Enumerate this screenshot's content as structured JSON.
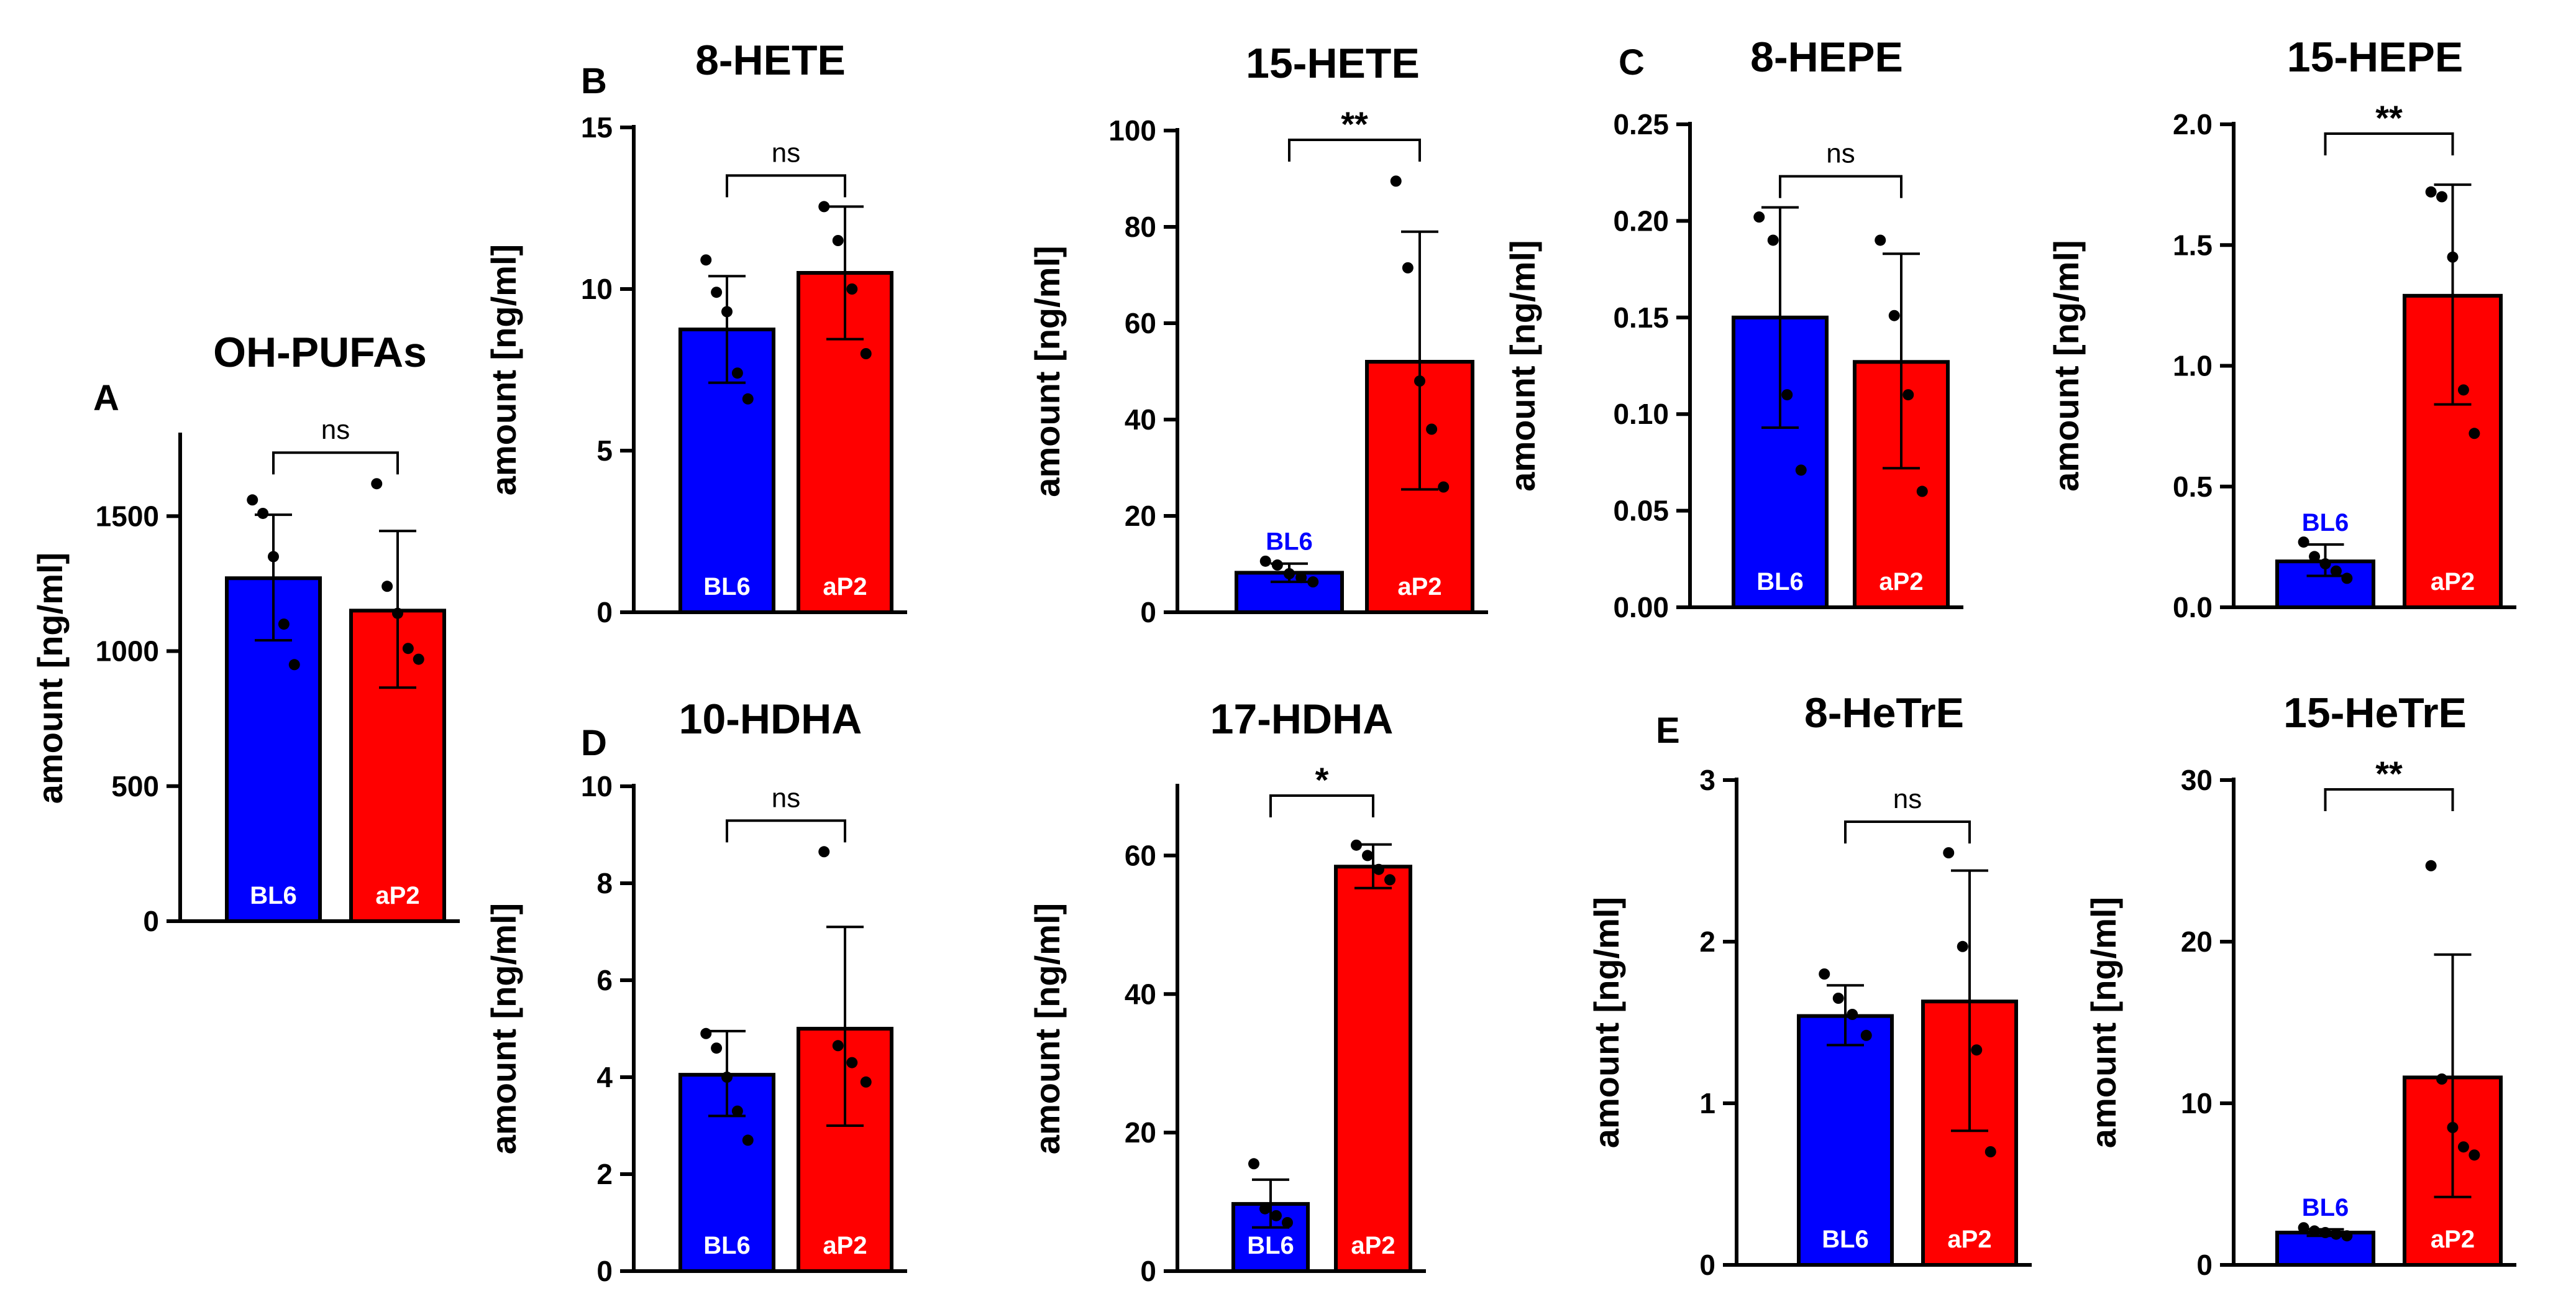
{
  "colors": {
    "bl6": "#0000ff",
    "ap2": "#ff0000",
    "axis": "#000000",
    "bl6_outside_label": "#0000ff",
    "inside_label": "#ffffff"
  },
  "chart_data": [
    {
      "id": "A",
      "panel_letter": "A",
      "type": "bar",
      "title": "OH-PUFAs",
      "ylabel": "amount [ng/ml]",
      "ylim": [
        0,
        1800
      ],
      "ytick_labels": [
        "0",
        "500",
        "1000",
        "1500"
      ],
      "yticks": [
        0,
        500,
        1000,
        1500
      ],
      "significance": "ns",
      "groups": [
        {
          "name": "BL6",
          "value": 1270,
          "err_low": 1040,
          "err_high": 1505,
          "points": [
            1560,
            1510,
            1350,
            1100,
            950
          ],
          "label_position": "inside"
        },
        {
          "name": "aP2",
          "value": 1150,
          "err_low": 865,
          "err_high": 1445,
          "points": [
            1620,
            1240,
            1140,
            1010,
            970
          ],
          "label_position": "inside"
        }
      ]
    },
    {
      "id": "B1",
      "panel_letter": "B",
      "type": "bar",
      "title": "8-HETE",
      "ylabel": "amount [ng/ml]",
      "ylim": [
        0,
        15
      ],
      "ytick_labels": [
        "0",
        "5",
        "10",
        "15"
      ],
      "yticks": [
        0,
        5,
        10,
        15
      ],
      "significance": "ns",
      "groups": [
        {
          "name": "BL6",
          "value": 8.75,
          "err_low": 7.1,
          "err_high": 10.4,
          "points": [
            10.9,
            9.9,
            9.3,
            7.4,
            6.6
          ],
          "label_position": "inside"
        },
        {
          "name": "aP2",
          "value": 10.5,
          "err_low": 8.45,
          "err_high": 12.55,
          "points": [
            12.55,
            11.5,
            10.0,
            8.0
          ],
          "label_position": "inside"
        }
      ]
    },
    {
      "id": "B2",
      "panel_letter": "",
      "type": "bar",
      "title": "15-HETE",
      "ylabel": "amount [ng/ml]",
      "ylim": [
        0,
        100
      ],
      "ytick_labels": [
        "0",
        "20",
        "40",
        "60",
        "80",
        "100"
      ],
      "yticks": [
        0,
        20,
        40,
        60,
        80,
        100
      ],
      "significance": "**",
      "groups": [
        {
          "name": "BL6",
          "value": 8.2,
          "err_low": 6.3,
          "err_high": 10.1,
          "points": [
            10.6,
            9.8,
            8.0,
            7.2,
            6.3
          ],
          "label_position": "outside"
        },
        {
          "name": "aP2",
          "value": 52,
          "err_low": 25.5,
          "err_high": 79,
          "points": [
            89.5,
            71.5,
            48,
            38,
            26
          ],
          "label_position": "inside"
        }
      ]
    },
    {
      "id": "C1",
      "panel_letter": "C",
      "type": "bar",
      "title": "8-HEPE",
      "ylabel": "amount [ng/ml]",
      "ylim": [
        0,
        0.25
      ],
      "ytick_labels": [
        "0.00",
        "0.05",
        "0.10",
        "0.15",
        "0.20",
        "0.25"
      ],
      "yticks": [
        0,
        0.05,
        0.1,
        0.15,
        0.2,
        0.25
      ],
      "significance": "ns",
      "groups": [
        {
          "name": "BL6",
          "value": 0.15,
          "err_low": 0.093,
          "err_high": 0.207,
          "points": [
            0.202,
            0.19,
            0.11,
            0.071
          ],
          "label_position": "inside"
        },
        {
          "name": "aP2",
          "value": 0.127,
          "err_low": 0.072,
          "err_high": 0.183,
          "points": [
            0.19,
            0.151,
            0.11,
            0.06
          ],
          "label_position": "inside"
        }
      ]
    },
    {
      "id": "C2",
      "panel_letter": "",
      "type": "bar",
      "title": "15-HEPE",
      "ylabel": "amount [ng/ml]",
      "ylim": [
        0,
        2.0
      ],
      "ytick_labels": [
        "0.0",
        "0.5",
        "1.0",
        "1.5",
        "2.0"
      ],
      "yticks": [
        0,
        0.5,
        1.0,
        1.5,
        2.0
      ],
      "significance": "**",
      "groups": [
        {
          "name": "BL6",
          "value": 0.19,
          "err_low": 0.13,
          "err_high": 0.26,
          "points": [
            0.27,
            0.21,
            0.18,
            0.15,
            0.12
          ],
          "label_position": "outside"
        },
        {
          "name": "aP2",
          "value": 1.29,
          "err_low": 0.84,
          "err_high": 1.75,
          "points": [
            1.72,
            1.7,
            1.45,
            0.9,
            0.72
          ],
          "label_position": "inside"
        }
      ]
    },
    {
      "id": "D1",
      "panel_letter": "D",
      "type": "bar",
      "title": "10-HDHA",
      "ylabel": "amount [ng/ml]",
      "ylim": [
        0,
        10
      ],
      "ytick_labels": [
        "0",
        "2",
        "4",
        "6",
        "8",
        "10"
      ],
      "yticks": [
        0,
        2,
        4,
        6,
        8,
        10
      ],
      "significance": "ns",
      "groups": [
        {
          "name": "BL6",
          "value": 4.05,
          "err_low": 3.2,
          "err_high": 4.95,
          "points": [
            4.9,
            4.6,
            4.0,
            3.3,
            2.7
          ],
          "label_position": "inside"
        },
        {
          "name": "aP2",
          "value": 5.0,
          "err_low": 3.0,
          "err_high": 7.1,
          "points": [
            8.65,
            4.65,
            4.3,
            3.9
          ],
          "label_position": "inside"
        }
      ]
    },
    {
      "id": "D2",
      "panel_letter": "",
      "type": "bar",
      "title": "17-HDHA",
      "ylabel": "amount [ng/ml]",
      "ylim": [
        0,
        70
      ],
      "ytick_labels": [
        "0",
        "20",
        "40",
        "60"
      ],
      "yticks": [
        0,
        20,
        40,
        60
      ],
      "significance": "*",
      "groups": [
        {
          "name": "BL6",
          "value": 9.7,
          "err_low": 6.3,
          "err_high": 13.2,
          "points": [
            15.5,
            9.0,
            8.0,
            7.0
          ],
          "label_position": "inside"
        },
        {
          "name": "aP2",
          "value": 58.4,
          "err_low": 55.3,
          "err_high": 61.6,
          "points": [
            61.5,
            60.0,
            58.0,
            56.5
          ],
          "label_position": "inside"
        }
      ]
    },
    {
      "id": "E1",
      "panel_letter": "E",
      "type": "bar",
      "title": "8-HeTrE",
      "ylabel": "amount [ng/ml]",
      "ylim": [
        0,
        3
      ],
      "ytick_labels": [
        "0",
        "1",
        "2",
        "3"
      ],
      "yticks": [
        0,
        1,
        2,
        3
      ],
      "significance": "ns",
      "groups": [
        {
          "name": "BL6",
          "value": 1.54,
          "err_low": 1.36,
          "err_high": 1.73,
          "points": [
            1.8,
            1.65,
            1.55,
            1.42
          ],
          "label_position": "inside"
        },
        {
          "name": "aP2",
          "value": 1.63,
          "err_low": 0.83,
          "err_high": 2.44,
          "points": [
            2.55,
            1.97,
            1.33,
            0.7
          ],
          "label_position": "inside"
        }
      ]
    },
    {
      "id": "E2",
      "panel_letter": "",
      "type": "bar",
      "title": "15-HeTrE",
      "ylabel": "amount [ng/ml]",
      "ylim": [
        0,
        30
      ],
      "ytick_labels": [
        "0",
        "10",
        "20",
        "30"
      ],
      "yticks": [
        0,
        10,
        20,
        30
      ],
      "significance": "**",
      "groups": [
        {
          "name": "BL6",
          "value": 2.0,
          "err_low": 1.8,
          "err_high": 2.2,
          "points": [
            2.3,
            2.1,
            2.0,
            1.9,
            1.8
          ],
          "label_position": "outside"
        },
        {
          "name": "aP2",
          "value": 11.6,
          "err_low": 4.2,
          "err_high": 19.2,
          "points": [
            24.7,
            11.5,
            8.5,
            7.3,
            6.8
          ],
          "label_position": "inside"
        }
      ]
    }
  ]
}
